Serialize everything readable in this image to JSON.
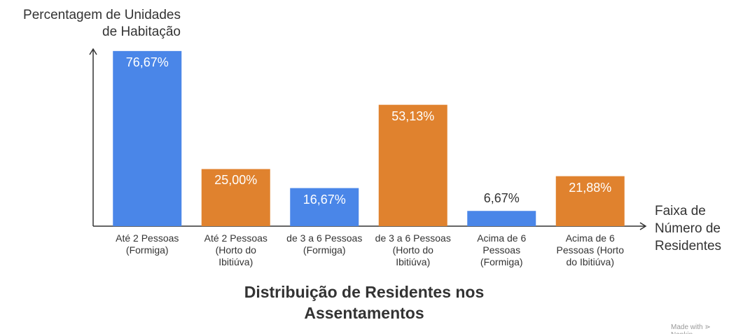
{
  "chart_data": {
    "type": "bar",
    "title": "Distribuição de Residentes nos\nAssentamentos",
    "y_label": "Percentagem de Unidades\nde Habitação",
    "x_label": "Faixa de\nNúmero de\nResidentes",
    "footer": "Made with ⋗ Napkin",
    "categories": [
      "Até 2 Pessoas\n(Formiga)",
      "Até 2 Pessoas\n(Horto do\nIbitiúva)",
      "de 3 a 6 Pessoas\n(Formiga)",
      "de 3 a 6 Pessoas\n(Horto do\nIbitiúva)",
      "Acima de 6\nPessoas\n(Formiga)",
      "Acima de 6\nPessoas (Horto\ndo Ibitiúva)"
    ],
    "values": [
      76.67,
      25.0,
      16.67,
      53.13,
      6.67,
      21.88
    ],
    "value_labels": [
      "76,67%",
      "25,00%",
      "16,67%",
      "53,13%",
      "6,67%",
      "21,88%"
    ],
    "colors": [
      "#4a86e8",
      "#e0822e",
      "#4a86e8",
      "#e0822e",
      "#4a86e8",
      "#e0822e"
    ],
    "ylim": [
      0,
      80
    ]
  }
}
